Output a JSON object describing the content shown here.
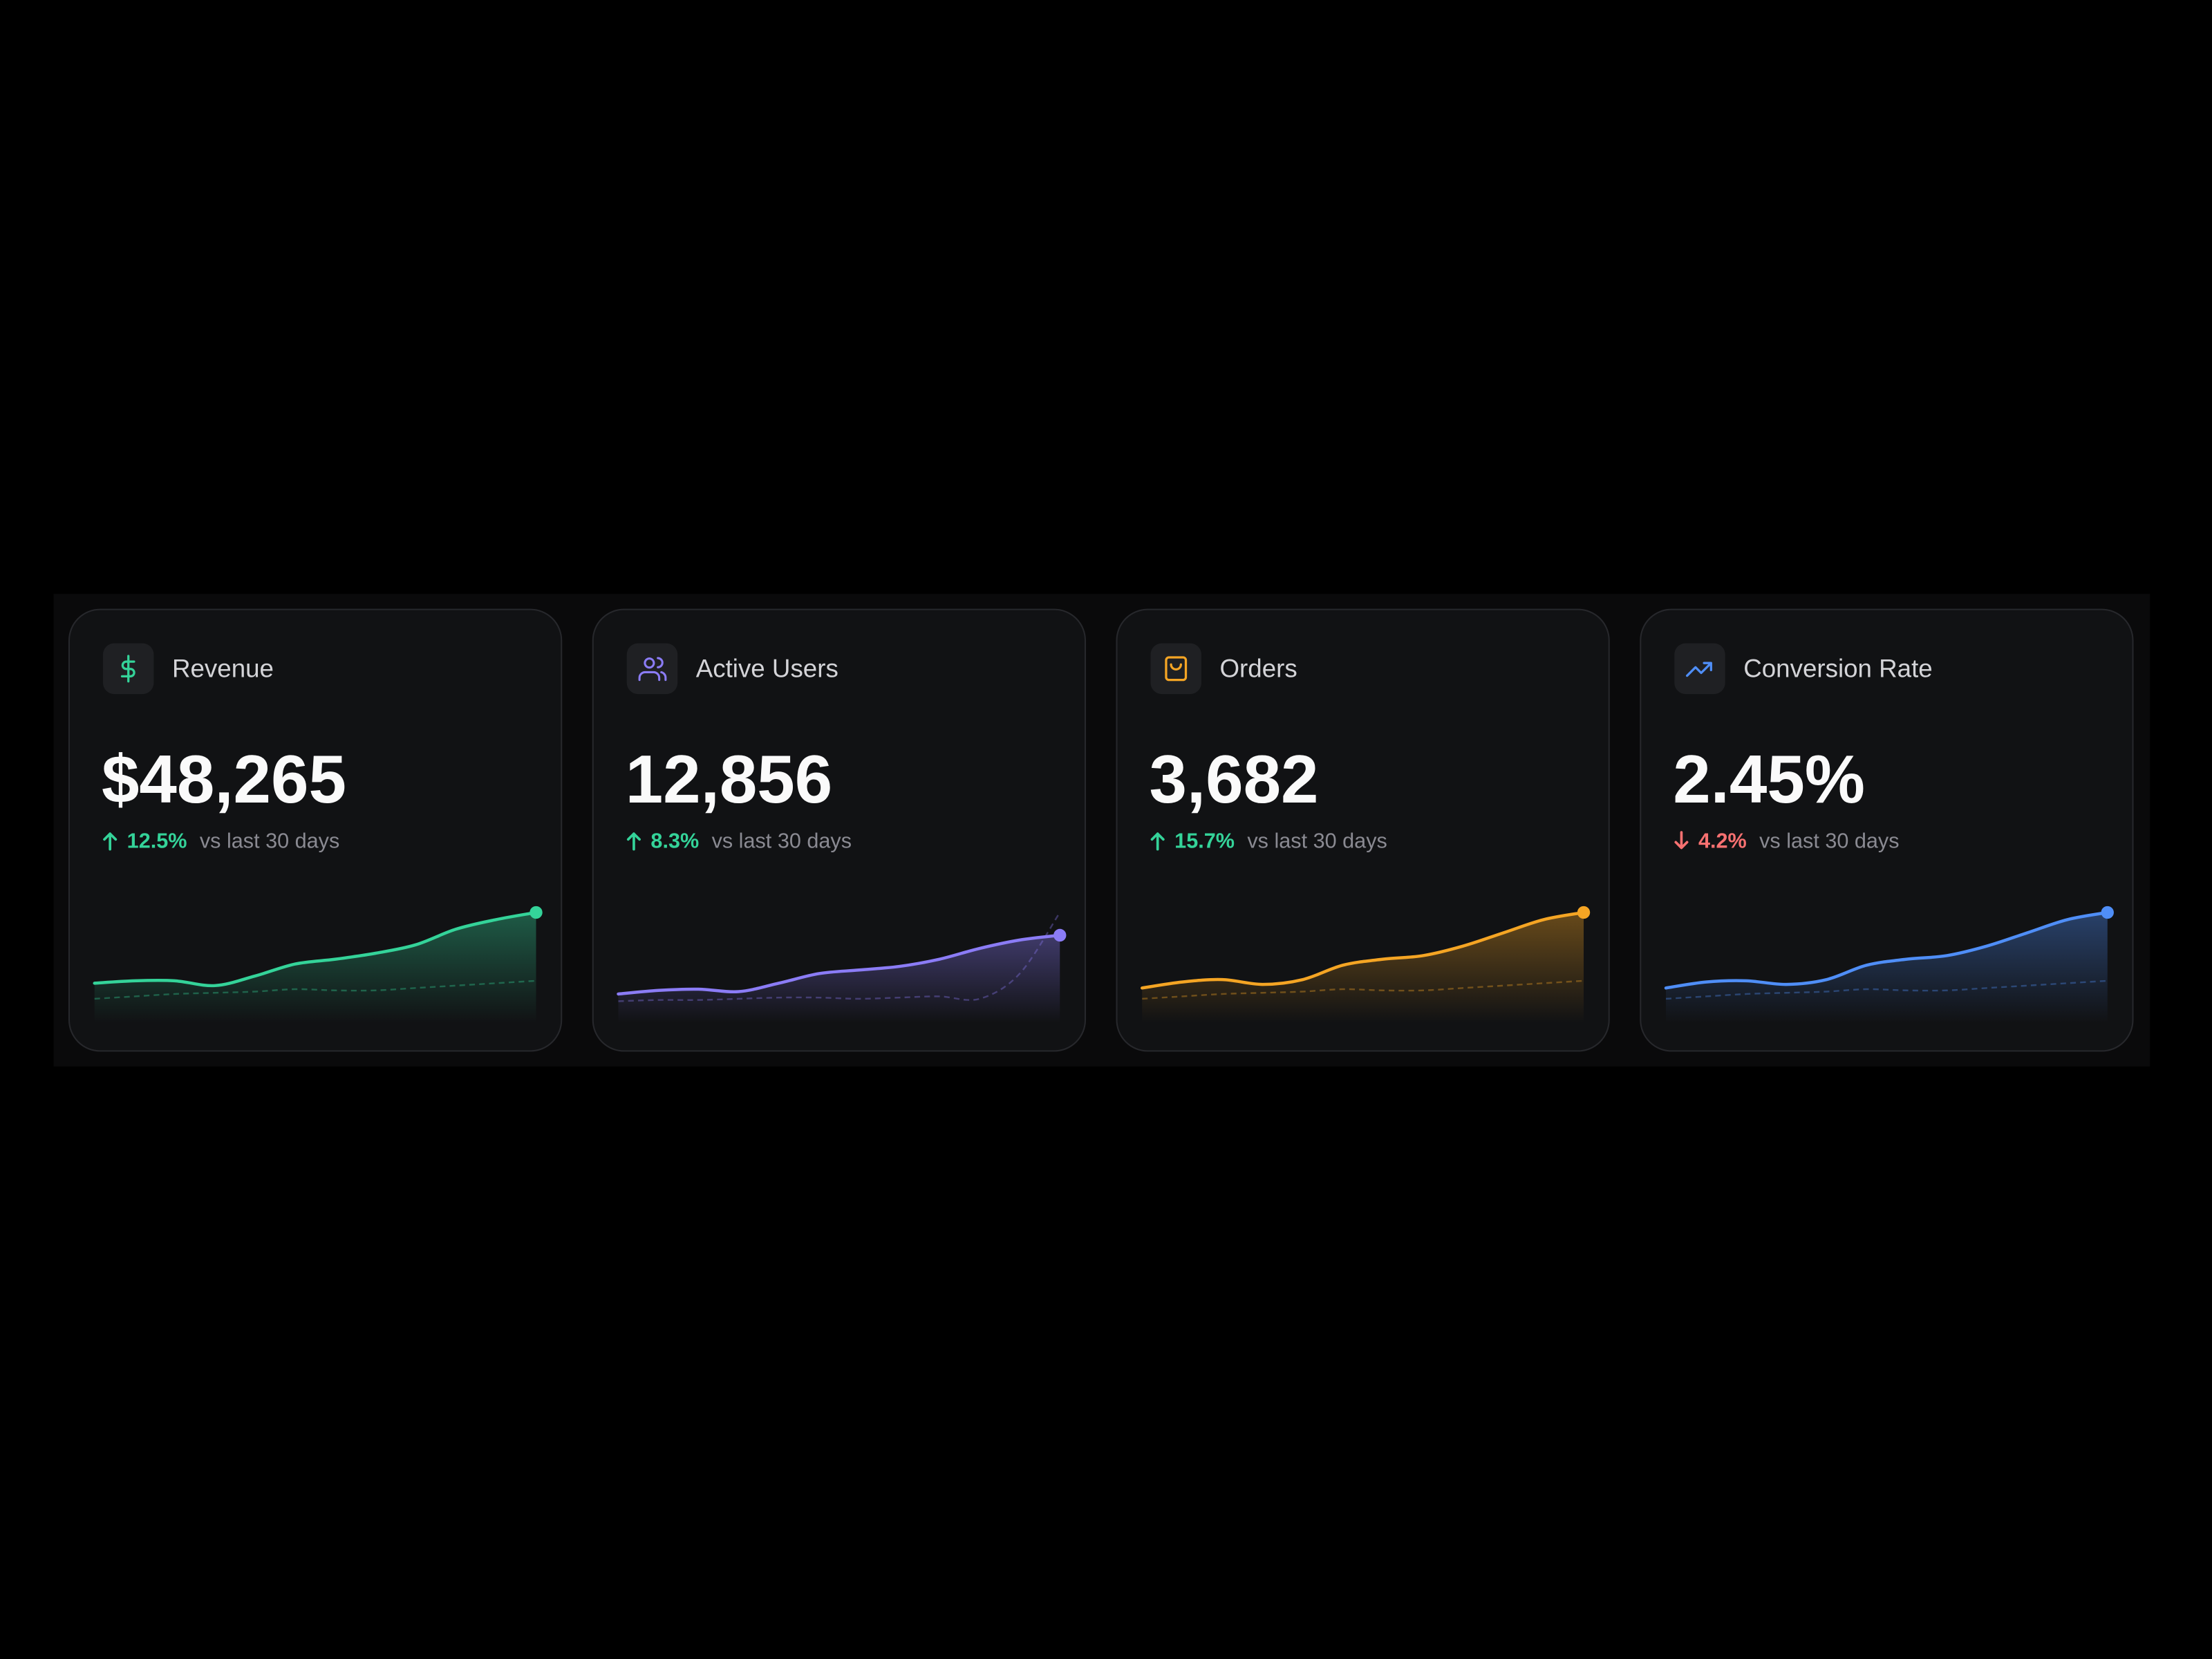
{
  "cards": [
    {
      "title": "Revenue",
      "value": "$48,265",
      "change": "12.5%",
      "direction": "up",
      "comparison": "vs last 30 days",
      "color": "#34d399",
      "sparkline": {
        "ylim": [
          0,
          100
        ],
        "current": [
          33,
          35,
          35,
          31,
          39,
          49,
          53,
          58,
          65,
          78,
          86,
          92
        ],
        "previous": [
          20,
          22,
          24,
          25,
          26,
          28,
          27,
          27,
          29,
          31,
          33,
          35
        ]
      }
    },
    {
      "title": "Active Users",
      "value": "12,856",
      "change": "8.3%",
      "direction": "up",
      "comparison": "vs last 30 days",
      "color": "#8b7cf6",
      "sparkline": {
        "ylim": [
          0,
          100
        ],
        "current": [
          24,
          27,
          28,
          26,
          33,
          41,
          44,
          47,
          53,
          62,
          69,
          73
        ],
        "previous": [
          18,
          19,
          19,
          20,
          21,
          21,
          20,
          21,
          22,
          20,
          41,
          92
        ]
      }
    },
    {
      "title": "Orders",
      "value": "3,682",
      "change": "15.7%",
      "direction": "up",
      "comparison": "vs last 30 days",
      "color": "#f5a524",
      "sparkline": {
        "ylim": [
          0,
          100
        ],
        "current": [
          29,
          34,
          36,
          32,
          36,
          48,
          53,
          56,
          64,
          75,
          86,
          92
        ],
        "previous": [
          20,
          22,
          24,
          25,
          26,
          28,
          27,
          27,
          29,
          31,
          33,
          35
        ]
      }
    },
    {
      "title": "Conversion Rate",
      "value": "2.45%",
      "change": "4.2%",
      "direction": "down",
      "comparison": "vs last 30 days",
      "color": "#4f8ef7",
      "sparkline": {
        "ylim": [
          0,
          100
        ],
        "current": [
          29,
          34,
          35,
          32,
          36,
          48,
          53,
          56,
          64,
          75,
          86,
          92
        ],
        "previous": [
          20,
          22,
          24,
          25,
          26,
          28,
          27,
          27,
          29,
          31,
          33,
          35
        ]
      }
    }
  ]
}
